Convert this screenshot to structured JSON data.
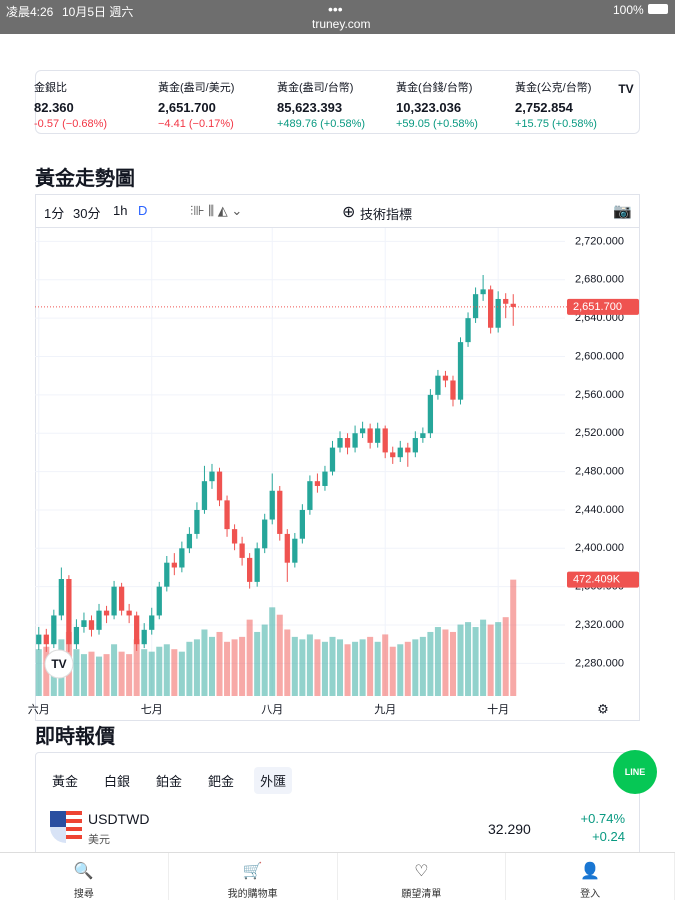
{
  "status_bar": {
    "time": "凌晨4:26",
    "date": "10月5日 週六",
    "battery": "100%"
  },
  "url": "truney.com",
  "tickers": [
    {
      "name": "金銀比",
      "price": "82.360",
      "change": "-0.57 (−0.68%)",
      "dir": "down"
    },
    {
      "name": "黃金(盎司/美元)",
      "price": "2,651.700",
      "change": "−4.41 (−0.17%)",
      "dir": "down"
    },
    {
      "name": "黃金(盎司/台幣)",
      "price": "85,623.393",
      "change": "+489.76 (+0.58%)",
      "dir": "up"
    },
    {
      "name": "黃金(台錢/台幣)",
      "price": "10,323.036",
      "change": "+59.05 (+0.58%)",
      "dir": "up"
    },
    {
      "name": "黃金(公克/台幣)",
      "price": "2,752.854",
      "change": "+15.75 (+0.58%)",
      "dir": "up"
    }
  ],
  "section_title": "黃金走勢圖",
  "toolbar": {
    "intervals": [
      "1分",
      "30分",
      "1h",
      "D"
    ],
    "indicators": "技術指標"
  },
  "chart_data": {
    "type": "candlestick",
    "up_color": "#26a69a",
    "down_color": "#ef5350",
    "grid": true,
    "xlim": [
      -0.5,
      63.5
    ],
    "ylim": [
      2246,
      2734
    ],
    "y2lim": [
      0,
      1900000
    ],
    "xticks": [
      {
        "value": 0,
        "label": "六月"
      },
      {
        "value": 15,
        "label": "七月"
      },
      {
        "value": 31,
        "label": "八月"
      },
      {
        "value": 46,
        "label": "九月"
      },
      {
        "value": 61,
        "label": "十月"
      }
    ],
    "yticks": [
      {
        "value": 2280,
        "label": "2,280.000"
      },
      {
        "value": 2320,
        "label": "2,320.000"
      },
      {
        "value": 2360,
        "label": "2,360.000"
      },
      {
        "value": 2400,
        "label": "2,400.000"
      },
      {
        "value": 2440,
        "label": "2,440.000"
      },
      {
        "value": 2480,
        "label": "2,480.000"
      },
      {
        "value": 2520,
        "label": "2,520.000"
      },
      {
        "value": 2560,
        "label": "2,560.000"
      },
      {
        "value": 2600,
        "label": "2,600.000"
      },
      {
        "value": 2640,
        "label": "2,640.000"
      },
      {
        "value": 2680,
        "label": "2,680.000"
      },
      {
        "value": 2720,
        "label": "2,720.000"
      }
    ],
    "open": [
      2300,
      2310,
      2300,
      2330,
      2368,
      2300,
      2318,
      2325,
      2315,
      2335,
      2330,
      2360,
      2335,
      2330,
      2300,
      2315,
      2330,
      2360,
      2385,
      2380,
      2400,
      2415,
      2440,
      2470,
      2480,
      2450,
      2420,
      2405,
      2390,
      2365,
      2400,
      2430,
      2460,
      2415,
      2385,
      2410,
      2440,
      2470,
      2465,
      2480,
      2505,
      2515,
      2505,
      2520,
      2525,
      2510,
      2525,
      2500,
      2495,
      2505,
      2500,
      2515,
      2520,
      2560,
      2580,
      2575,
      2555,
      2615,
      2640,
      2665,
      2670,
      2630,
      2660,
      2655
    ],
    "high": [
      2318,
      2316,
      2336,
      2380,
      2372,
      2326,
      2333,
      2330,
      2342,
      2340,
      2366,
      2364,
      2342,
      2334,
      2322,
      2338,
      2365,
      2392,
      2395,
      2407,
      2422,
      2448,
      2486,
      2488,
      2484,
      2455,
      2425,
      2412,
      2395,
      2406,
      2436,
      2478,
      2465,
      2420,
      2416,
      2446,
      2476,
      2478,
      2486,
      2512,
      2522,
      2520,
      2528,
      2532,
      2530,
      2531,
      2528,
      2506,
      2512,
      2510,
      2522,
      2526,
      2566,
      2586,
      2585,
      2580,
      2620,
      2646,
      2672,
      2685,
      2674,
      2668,
      2666,
      2665
    ],
    "low": [
      2294,
      2292,
      2296,
      2325,
      2292,
      2295,
      2312,
      2308,
      2310,
      2322,
      2326,
      2330,
      2322,
      2293,
      2296,
      2310,
      2326,
      2355,
      2372,
      2375,
      2395,
      2410,
      2436,
      2462,
      2444,
      2412,
      2398,
      2382,
      2358,
      2360,
      2395,
      2425,
      2408,
      2365,
      2380,
      2405,
      2435,
      2458,
      2460,
      2476,
      2500,
      2498,
      2500,
      2515,
      2504,
      2505,
      2494,
      2488,
      2490,
      2485,
      2495,
      2510,
      2515,
      2555,
      2568,
      2548,
      2550,
      2610,
      2635,
      2658,
      2624,
      2625,
      2640,
      2632
    ],
    "close": [
      2310,
      2300,
      2330,
      2368,
      2300,
      2318,
      2325,
      2315,
      2335,
      2330,
      2360,
      2335,
      2330,
      2300,
      2315,
      2330,
      2360,
      2385,
      2380,
      2400,
      2415,
      2440,
      2470,
      2480,
      2450,
      2420,
      2405,
      2390,
      2365,
      2400,
      2430,
      2460,
      2415,
      2385,
      2410,
      2440,
      2470,
      2465,
      2480,
      2505,
      2515,
      2505,
      2520,
      2525,
      2510,
      2525,
      2500,
      2495,
      2505,
      2500,
      2515,
      2520,
      2560,
      2580,
      2575,
      2555,
      2615,
      2640,
      2665,
      2670,
      2630,
      2660,
      2655,
      2651.7
    ],
    "volume": [
      190000,
      200000,
      180000,
      230000,
      260000,
      190000,
      170000,
      180000,
      160000,
      170000,
      210000,
      180000,
      170000,
      230000,
      190000,
      180000,
      200000,
      210000,
      190000,
      180000,
      220000,
      230000,
      270000,
      240000,
      260000,
      220000,
      230000,
      240000,
      310000,
      260000,
      290000,
      360000,
      330000,
      270000,
      240000,
      230000,
      250000,
      230000,
      220000,
      240000,
      230000,
      210000,
      220000,
      230000,
      240000,
      220000,
      250000,
      200000,
      210000,
      220000,
      230000,
      240000,
      260000,
      280000,
      270000,
      260000,
      290000,
      300000,
      280000,
      310000,
      290000,
      300000,
      320000,
      472409
    ],
    "close_label": "2,651.700",
    "volume_label": "472.409K"
  },
  "quotes_title": "即時報價",
  "tabs": [
    "黃金",
    "白銀",
    "鉑金",
    "鈀金",
    "外匯"
  ],
  "quote": {
    "symbol": "USDTWD",
    "name": "美元",
    "price": "32.290",
    "change_pct": "+0.74%",
    "change": "+0.24"
  },
  "line": "LINE",
  "nav": [
    "搜尋",
    "我的購物車",
    "願望清單",
    "登入"
  ]
}
